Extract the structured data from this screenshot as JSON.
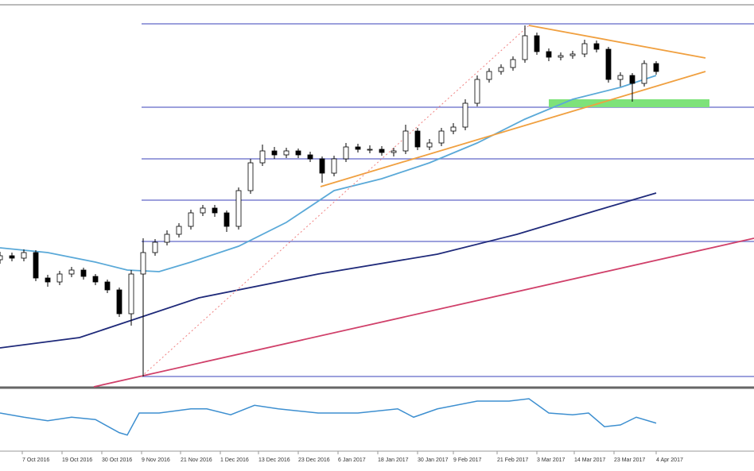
{
  "chart_data": [
    {
      "type": "candlestick",
      "xlim": [
        0,
        189.6
      ],
      "ylim": [
        0,
        485
      ],
      "x": [
        0,
        3,
        6,
        9,
        12,
        15,
        18,
        21,
        24,
        27,
        30,
        33,
        36,
        39,
        42,
        45,
        48,
        51,
        54,
        57,
        60,
        63,
        66,
        69,
        72,
        75,
        78,
        81,
        84,
        87,
        90,
        93,
        96,
        99,
        102,
        105,
        108,
        111,
        114,
        117,
        120,
        123,
        126,
        129,
        132,
        135,
        138,
        141,
        144,
        147,
        150,
        153,
        156,
        159,
        162,
        165
      ],
      "open": [
        160,
        165,
        162,
        169,
        137,
        132,
        142,
        147,
        139,
        132,
        122,
        92,
        142,
        169,
        182,
        192,
        202,
        219,
        225,
        219,
        202,
        247,
        282,
        297,
        292,
        297,
        292,
        287,
        269,
        287,
        302,
        299,
        299,
        295,
        297,
        322,
        302,
        307,
        322,
        327,
        357,
        387,
        397,
        402,
        412,
        442,
        422,
        415,
        417,
        419,
        432,
        425,
        387,
        392,
        382,
        407
      ],
      "high": [
        170,
        169,
        173,
        172,
        141,
        146,
        151,
        150,
        142,
        135,
        125,
        147,
        187,
        186,
        197,
        206,
        223,
        229,
        229,
        222,
        251,
        287,
        305,
        302,
        301,
        300,
        296,
        290,
        291,
        307,
        306,
        304,
        303,
        301,
        330,
        326,
        312,
        326,
        332,
        362,
        392,
        401,
        406,
        416,
        455,
        446,
        426,
        421,
        423,
        437,
        436,
        428,
        396,
        395,
        411,
        410
      ],
      "low": [
        155,
        158,
        158,
        133,
        126,
        128,
        138,
        135,
        128,
        118,
        88,
        77,
        13,
        165,
        178,
        188,
        198,
        215,
        214,
        195,
        198,
        243,
        278,
        287,
        288,
        288,
        283,
        257,
        265,
        283,
        295,
        294,
        291,
        290,
        293,
        298,
        298,
        303,
        318,
        323,
        353,
        383,
        393,
        398,
        408,
        418,
        410,
        411,
        413,
        415,
        421,
        383,
        378,
        359,
        378,
        393
      ],
      "close": [
        165,
        162,
        169,
        137,
        132,
        142,
        147,
        139,
        132,
        122,
        92,
        142,
        169,
        182,
        192,
        202,
        219,
        225,
        219,
        202,
        247,
        282,
        297,
        292,
        297,
        292,
        287,
        269,
        287,
        302,
        299,
        299,
        295,
        297,
        322,
        302,
        307,
        322,
        327,
        357,
        387,
        397,
        402,
        412,
        442,
        422,
        415,
        417,
        419,
        432,
        425,
        387,
        392,
        382,
        407,
        397
      ],
      "levels": {
        "values": [
          457,
          352,
          287,
          235,
          183,
          13
        ],
        "x_start": 35.6,
        "color": "#7b80d0"
      },
      "zone": {
        "x": [
          138,
          178.4
        ],
        "values": [
          352,
          362
        ],
        "color": "#7ee27a"
      },
      "overlays": [
        {
          "color": "#5aa9d8",
          "dash": false,
          "x": [
            0,
            12,
            24,
            32,
            40,
            48,
            60,
            72,
            84,
            96,
            108,
            120,
            132,
            144,
            156,
            165
          ],
          "values": [
            175,
            169,
            157,
            147,
            145,
            157,
            177,
            207,
            247,
            262,
            282,
            307,
            337,
            362,
            377,
            392
          ]
        },
        {
          "color": "#1f2a7a",
          "dash": false,
          "x": [
            0,
            20,
            32,
            50,
            80,
            110,
            130,
            150,
            165
          ],
          "values": [
            49,
            62,
            82,
            112,
            142,
            167,
            192,
            222,
            244
          ]
        },
        {
          "color": "#d0406a",
          "dash": false,
          "x": [
            23.6,
            189.6
          ],
          "values": [
            0,
            187
          ]
        },
        {
          "color": "#f0a040",
          "dash": false,
          "x": [
            80.6,
            177.4
          ],
          "values": [
            252,
            397
          ]
        },
        {
          "color": "#f0a040",
          "dash": false,
          "x": [
            133,
            177.4
          ],
          "values": [
            455,
            414
          ]
        },
        {
          "color": "#f08080",
          "dash": true,
          "x": [
            35.6,
            133
          ],
          "values": [
            13,
            455
          ]
        }
      ]
    },
    {
      "type": "line",
      "xlim": [
        0,
        189.6
      ],
      "ylim": [
        0,
        100
      ],
      "color": "#3d8fd0",
      "x": [
        0,
        6,
        12,
        18,
        24,
        30,
        32,
        35,
        40,
        48,
        52,
        58,
        64,
        70,
        80,
        90,
        100,
        104,
        110,
        120,
        128,
        133,
        138,
        144,
        148,
        152,
        156,
        160,
        165
      ],
      "values": [
        60,
        53,
        47,
        53,
        49,
        27,
        23,
        60,
        60,
        67,
        67,
        57,
        73,
        67,
        60,
        60,
        67,
        53,
        67,
        80,
        80,
        84,
        60,
        57,
        60,
        37,
        40,
        53,
        43
      ],
      "xticks": [
        {
          "value": 5.6,
          "label": "7 Oct 2016"
        },
        {
          "value": 15.6,
          "label": "19 Oct 2016"
        },
        {
          "value": 25.6,
          "label": "30 Oct 2016"
        },
        {
          "value": 35.6,
          "label": "9 Nov 2016"
        },
        {
          "value": 45.4,
          "label": "21 Nov 2016"
        },
        {
          "value": 55.4,
          "label": "1 Dec 2016"
        },
        {
          "value": 65,
          "label": "13 Dec 2016"
        },
        {
          "value": 75,
          "label": "23 Dec 2016"
        },
        {
          "value": 85,
          "label": "6 Jan 2017"
        },
        {
          "value": 95,
          "label": "18 Jan 2017"
        },
        {
          "value": 105,
          "label": "30 Jan 2017"
        },
        {
          "value": 114,
          "label": "9 Feb 2017"
        },
        {
          "value": 125,
          "label": "21 Feb 2017"
        },
        {
          "value": 135,
          "label": "3 Mar 2017"
        },
        {
          "value": 144.4,
          "label": "14 Mar 2017"
        },
        {
          "value": 154.4,
          "label": "23 Mar 2017"
        },
        {
          "value": 165,
          "label": "4 Apr 2017"
        }
      ]
    }
  ]
}
